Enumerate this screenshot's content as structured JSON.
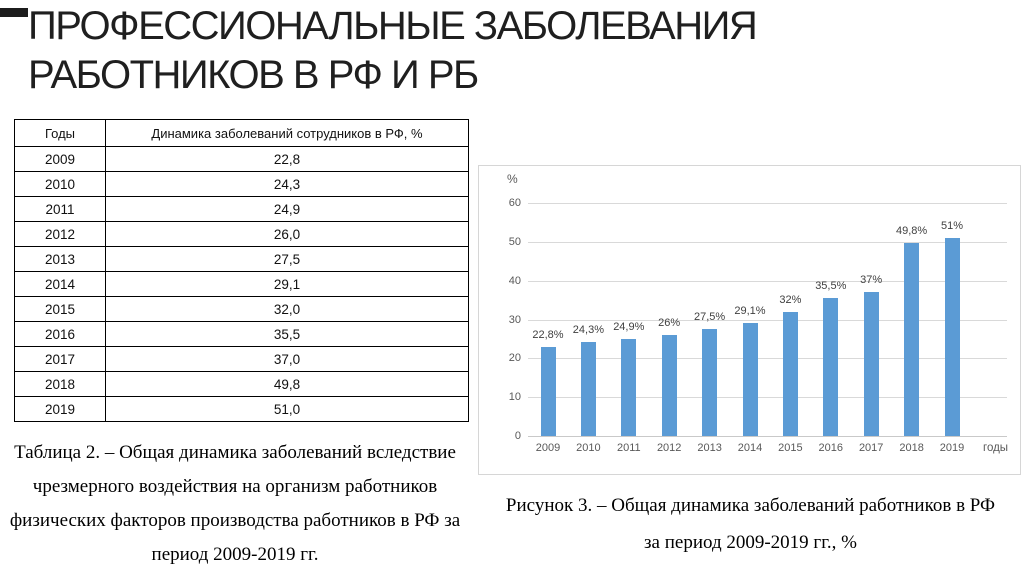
{
  "slide": {
    "title_lines": [
      "ПРОФЕССИОНАЛЬНЫЕ ЗАБОЛЕВАНИЯ",
      "РАБОТНИКОВ В РФ И РБ"
    ]
  },
  "table": {
    "headers": [
      "Годы",
      "Динамика заболеваний сотрудников в РФ, %"
    ],
    "rows": [
      [
        "2009",
        "22,8"
      ],
      [
        "2010",
        "24,3"
      ],
      [
        "2011",
        "24,9"
      ],
      [
        "2012",
        "26,0"
      ],
      [
        "2013",
        "27,5"
      ],
      [
        "2014",
        "29,1"
      ],
      [
        "2015",
        "32,0"
      ],
      [
        "2016",
        "35,5"
      ],
      [
        "2017",
        "37,0"
      ],
      [
        "2018",
        "49,8"
      ],
      [
        "2019",
        "51,0"
      ]
    ],
    "caption_lines": [
      "Таблица 2. – Общая динамика заболеваний вследствие",
      "чрезмерного воздействия на организм работников",
      "физических факторов производства работников в РФ за",
      "период 2009-2019 гг."
    ]
  },
  "figure": {
    "caption_lines": [
      "Рисунок 3. – Общая динамика заболеваний работников в РФ",
      "за период 2009-2019 гг., %"
    ]
  },
  "chart_data": {
    "type": "bar",
    "title": "",
    "categories": [
      "2009",
      "2010",
      "2011",
      "2012",
      "2013",
      "2014",
      "2015",
      "2016",
      "2017",
      "2018",
      "2019"
    ],
    "values": [
      22.8,
      24.3,
      24.9,
      26,
      27.5,
      29.1,
      32,
      35.5,
      37,
      49.8,
      51
    ],
    "data_labels": [
      "22,8%",
      "24,3%",
      "24,9%",
      "26%",
      "27,5%",
      "29,1%",
      "32%",
      "35,5%",
      "37%",
      "49,8%",
      "51%"
    ],
    "ylabel": "%",
    "xlabel": "годы",
    "yticks": [
      0,
      10,
      20,
      30,
      40,
      50,
      60
    ],
    "ylim": [
      0,
      65
    ],
    "grid": true,
    "legend": false,
    "bar_color": "#5b9bd5",
    "gridline_color": "#d9d9d9"
  },
  "colors": {
    "bar": "#5b9bd5",
    "corner_block": "#1c1c1c",
    "chart_border": "#d6d6d6"
  }
}
